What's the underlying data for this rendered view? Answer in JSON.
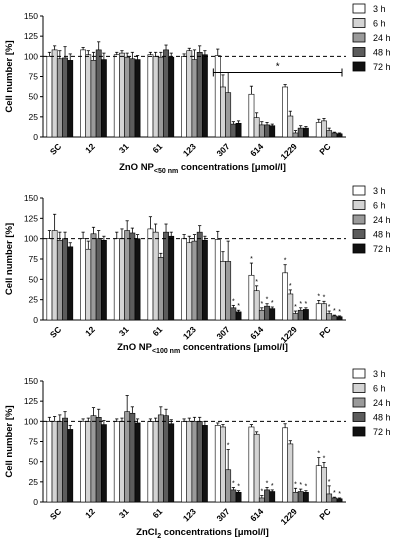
{
  "chart_data": [
    {
      "type": "bar",
      "ylabel": "Cell number [%]",
      "xlabel_main": "ZnO NP",
      "xlabel_sub": "<50 nm",
      "xlabel_tail": " concentrations [μmol/l]",
      "ylim": [
        0,
        150
      ],
      "yticks": [
        0,
        25,
        50,
        75,
        100,
        125,
        150
      ],
      "reference_line": 100,
      "categories": [
        "SC",
        "12",
        "31",
        "61",
        "123",
        "307",
        "614",
        "1229",
        "PC"
      ],
      "series": [
        {
          "name": "3 h",
          "color": "#ffffff",
          "values": [
            100,
            108,
            102,
            102,
            100,
            101,
            53,
            62,
            18
          ],
          "errors": [
            5,
            3,
            3,
            3,
            3,
            8,
            10,
            3,
            4
          ]
        },
        {
          "name": "6 h",
          "color": "#d4d4d4",
          "values": [
            108,
            102,
            104,
            100,
            107,
            62,
            24,
            26,
            20
          ],
          "errors": [
            5,
            5,
            3,
            5,
            3,
            15,
            6,
            6,
            3
          ]
        },
        {
          "name": "24 h",
          "color": "#9a9a9a",
          "values": [
            97,
            95,
            99,
            99,
            96,
            55,
            15,
            5,
            8
          ],
          "errors": [
            10,
            10,
            5,
            6,
            12,
            25,
            4,
            3,
            3
          ]
        },
        {
          "name": "48 h",
          "color": "#5c5c5c",
          "values": [
            98,
            108,
            97,
            108,
            105,
            16,
            15,
            11,
            5
          ],
          "errors": [
            14,
            10,
            8,
            6,
            8,
            3,
            3,
            3,
            1
          ]
        },
        {
          "name": "72 h",
          "color": "#111111",
          "values": [
            95,
            96,
            96,
            99,
            102,
            17,
            14,
            11,
            4
          ],
          "errors": [
            8,
            8,
            5,
            5,
            5,
            3,
            2,
            2,
            1
          ]
        }
      ],
      "annotations": [
        {
          "text": "*",
          "from_category": "307",
          "to_category": "PC"
        }
      ]
    },
    {
      "type": "bar",
      "ylabel": "Cell number [%]",
      "xlabel_main": "ZnO NP",
      "xlabel_sub": "<100 nm",
      "xlabel_tail": " concentrations [μmol/l]",
      "ylim": [
        0,
        150
      ],
      "yticks": [
        0,
        25,
        50,
        75,
        100,
        125,
        150
      ],
      "reference_line": 100,
      "categories": [
        "SC",
        "12",
        "31",
        "61",
        "123",
        "307",
        "614",
        "1229",
        "PC"
      ],
      "series": [
        {
          "name": "3 h",
          "color": "#ffffff",
          "values": [
            100,
            100,
            100,
            112,
            100,
            99,
            55,
            58,
            20
          ],
          "errors": [
            10,
            8,
            8,
            15,
            5,
            10,
            15,
            10,
            4
          ]
        },
        {
          "name": "6 h",
          "color": "#d4d4d4",
          "values": [
            110,
            87,
            100,
            108,
            95,
            72,
            36,
            32,
            20
          ],
          "errors": [
            20,
            10,
            12,
            10,
            8,
            12,
            6,
            5,
            3
          ]
        },
        {
          "name": "24 h",
          "color": "#9a9a9a",
          "values": [
            98,
            106,
            110,
            77,
            97,
            72,
            12,
            8,
            8
          ],
          "errors": [
            10,
            8,
            12,
            5,
            8,
            25,
            3,
            3,
            3
          ]
        },
        {
          "name": "48 h",
          "color": "#5c5c5c",
          "values": [
            100,
            100,
            107,
            108,
            108,
            15,
            17,
            12,
            5
          ],
          "errors": [
            8,
            10,
            6,
            10,
            8,
            3,
            3,
            3,
            1
          ]
        },
        {
          "name": "72 h",
          "color": "#111111",
          "values": [
            90,
            98,
            100,
            103,
            98,
            10,
            14,
            13,
            4
          ],
          "errors": [
            5,
            5,
            5,
            5,
            5,
            2,
            2,
            2,
            1
          ]
        }
      ],
      "annotations": [
        {
          "text": "*",
          "per_bar_after_category_index": 5
        }
      ]
    },
    {
      "type": "bar",
      "ylabel": "Cell number [%]",
      "xlabel_main": "ZnCl",
      "xlabel_sub": "2",
      "xlabel_tail": " concentrations [μmol/l]",
      "ylim": [
        0,
        150
      ],
      "yticks": [
        0,
        25,
        50,
        75,
        100,
        125,
        150
      ],
      "reference_line": 100,
      "categories": [
        "SC",
        "12",
        "31",
        "61",
        "123",
        "307",
        "614",
        "1229",
        "PC"
      ],
      "series": [
        {
          "name": "3 h",
          "color": "#ffffff",
          "values": [
            100,
            100,
            100,
            100,
            100,
            95,
            93,
            92,
            45
          ],
          "errors": [
            5,
            3,
            3,
            3,
            3,
            3,
            3,
            5,
            10
          ]
        },
        {
          "name": "6 h",
          "color": "#d4d4d4",
          "values": [
            100,
            100,
            100,
            100,
            100,
            93,
            84,
            72,
            43
          ],
          "errors": [
            6,
            4,
            4,
            4,
            4,
            3,
            3,
            4,
            6
          ]
        },
        {
          "name": "24 h",
          "color": "#9a9a9a",
          "values": [
            100,
            107,
            112,
            108,
            100,
            40,
            5,
            12,
            10
          ],
          "errors": [
            8,
            10,
            20,
            10,
            5,
            25,
            3,
            5,
            10
          ]
        },
        {
          "name": "48 h",
          "color": "#5c5c5c",
          "values": [
            104,
            105,
            110,
            107,
            100,
            15,
            15,
            13,
            5
          ],
          "errors": [
            8,
            10,
            8,
            8,
            5,
            3,
            3,
            3,
            1
          ]
        },
        {
          "name": "72 h",
          "color": "#111111",
          "values": [
            90,
            96,
            98,
            97,
            95,
            12,
            13,
            12,
            4
          ],
          "errors": [
            5,
            5,
            5,
            5,
            5,
            2,
            2,
            2,
            1
          ]
        }
      ],
      "annotations": [
        {
          "text": "*",
          "per_bar_after_category_index": 5
        }
      ]
    }
  ]
}
